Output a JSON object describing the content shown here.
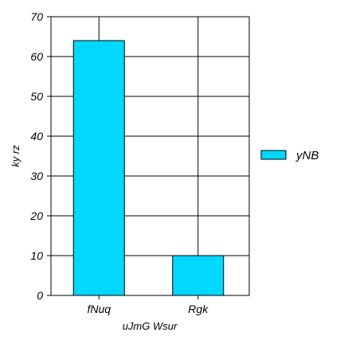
{
  "chart_data": {
    "type": "bar",
    "categories": [
      "fNuq",
      "Rgk"
    ],
    "series": [
      {
        "name": "yNB",
        "values": [
          64,
          10
        ]
      }
    ],
    "xlabel": "uJmG Wsur",
    "ylabel": "ky rz",
    "ylim": [
      0,
      70
    ],
    "yticks": [
      0,
      10,
      20,
      30,
      40,
      50,
      60,
      70
    ],
    "grid": true,
    "legend_position": "right",
    "colors": {
      "bar_fill": "#00d8ff",
      "bar_stroke": "#000000",
      "grid": "#000000",
      "axis": "#000000"
    }
  }
}
